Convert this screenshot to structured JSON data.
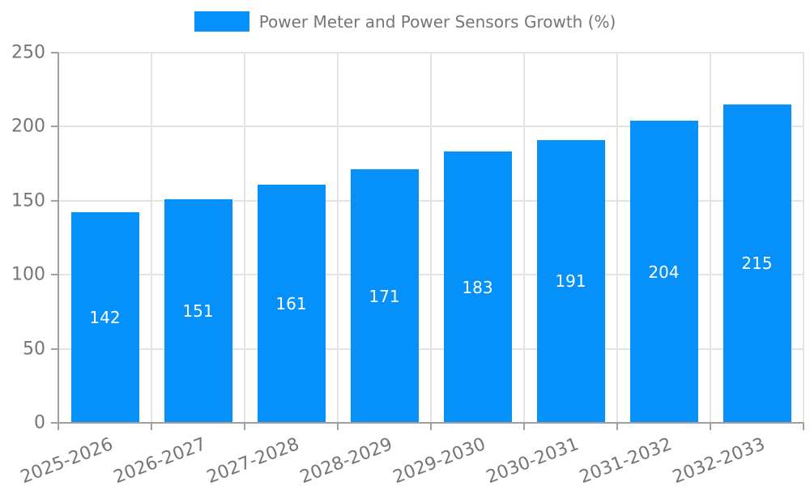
{
  "legend": {
    "label": "Power Meter and Power Sensors Growth (%)"
  },
  "chart_data": {
    "type": "bar",
    "title": "",
    "series_name": "Power Meter and Power Sensors Growth (%)",
    "categories": [
      "2025-2026",
      "2026-2027",
      "2027-2028",
      "2028-2029",
      "2029-2030",
      "2030-2031",
      "2031-2032",
      "2032-2033"
    ],
    "values": [
      142,
      151,
      161,
      171,
      183,
      191,
      204,
      215
    ],
    "xlabel": "",
    "ylabel": "",
    "ylim": [
      0,
      250
    ],
    "yticks": [
      0,
      50,
      100,
      150,
      200,
      250
    ],
    "grid": true,
    "legend_position": "top-center",
    "bar_label_position": "inside-middle",
    "x_tick_rotation_deg": 21
  },
  "colors": {
    "bar": "#0590fa",
    "grid": "#e3e3e3",
    "axis": "#9f9f9f",
    "tick_text": "#757575",
    "legend_text": "#757575",
    "bar_label_text": "#ffffff",
    "background": "#ffffff"
  }
}
